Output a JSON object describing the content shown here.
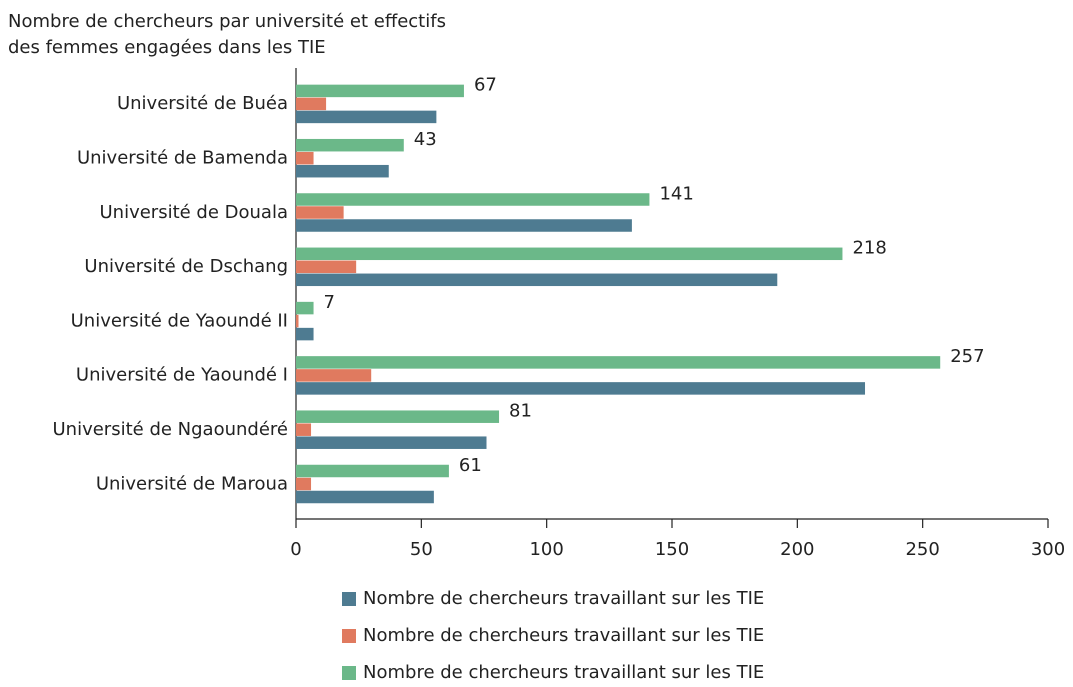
{
  "chart_data": {
    "type": "barh",
    "title": [
      "Nombre de chercheurs par université et effectifs",
      "des femmes engagées dans les TIE"
    ],
    "categories": [
      "Université de Buéa",
      "Université de Bamenda",
      "Université de Douala",
      "Université de Dschang",
      "Université de Yaoundé II",
      "Université de Yaoundé I",
      "Université de Ngaoundéré",
      "Université de Maroua"
    ],
    "series": [
      {
        "name": "Nombre de chercheurs travaillant sur les TIE",
        "color": "#4e7b91",
        "values": [
          56,
          37,
          134,
          192,
          7,
          227,
          76,
          55
        ]
      },
      {
        "name": "Nombre de chercheurs travaillant sur les TIE",
        "color": "#e07a5f",
        "values": [
          12,
          7,
          19,
          24,
          1,
          30,
          6,
          6
        ]
      },
      {
        "name": "Nombre de chercheurs travaillant sur les TIE",
        "color": "#6bb889",
        "values": [
          67,
          43,
          141,
          218,
          7,
          257,
          81,
          61
        ],
        "labeled": true
      }
    ],
    "xlim": [
      0,
      300
    ],
    "xticks": [
      0,
      50,
      100,
      150,
      200,
      250,
      300
    ],
    "grid": false
  }
}
